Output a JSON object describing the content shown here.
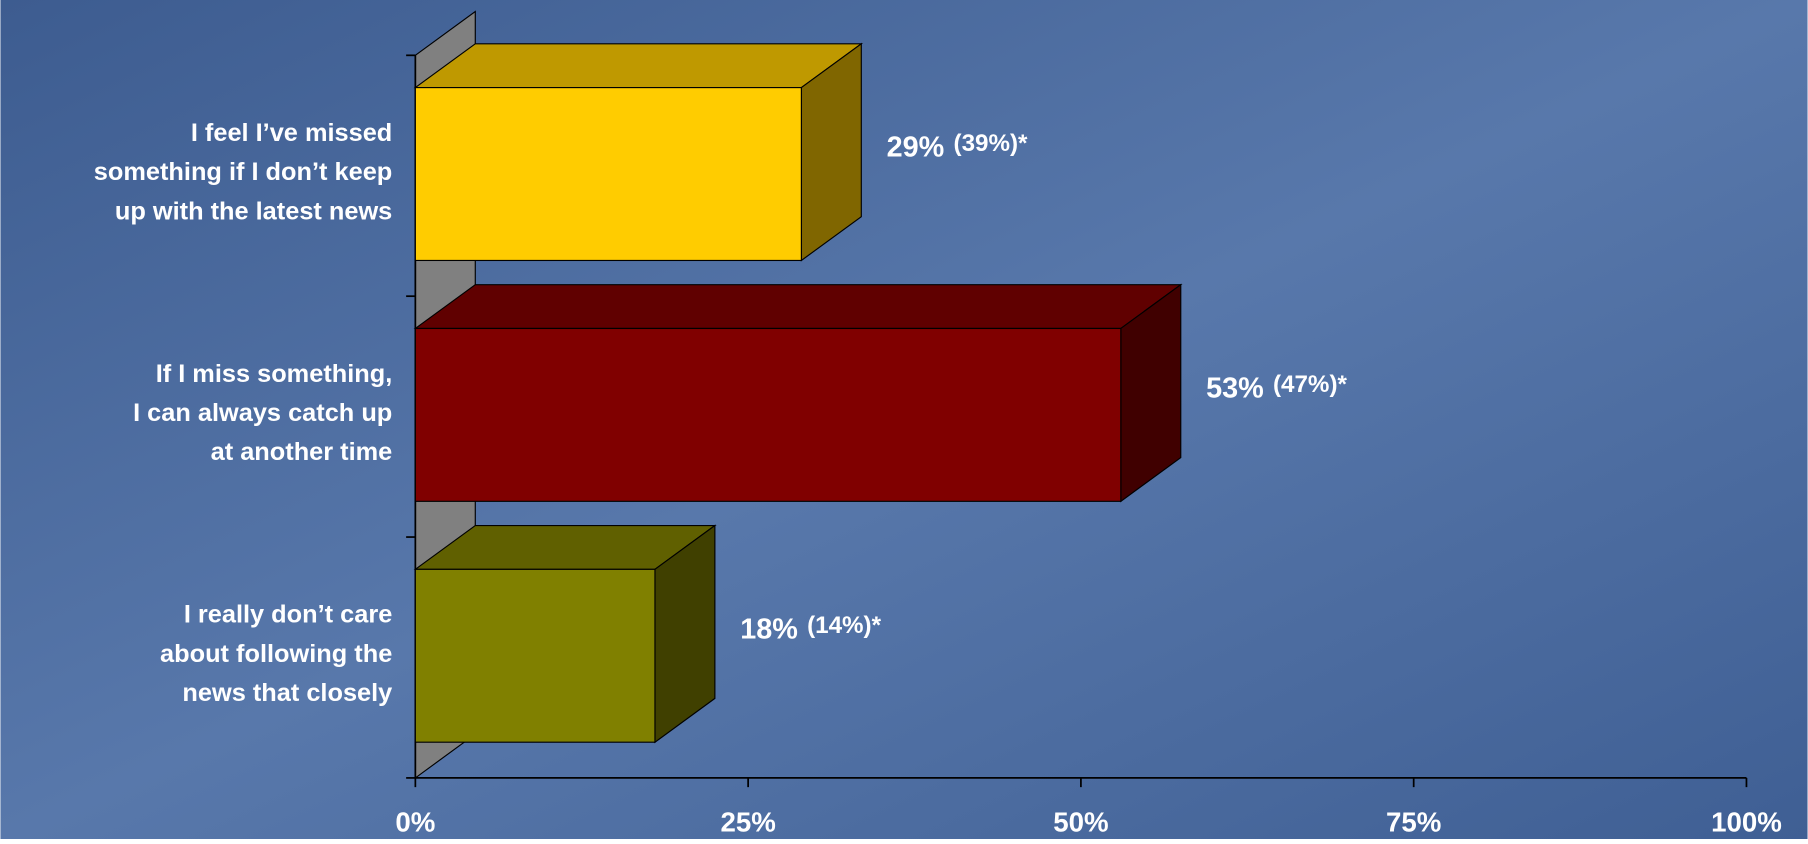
{
  "chart_data": {
    "type": "bar3d_horizontal",
    "categories": [
      [
        "I feel I’ve missed",
        "something if I don’t keep",
        "up with the latest news"
      ],
      [
        "If I miss something,",
        "I can always catch up",
        "at another time"
      ],
      [
        "I really don’t care",
        "about following the",
        "news that closely"
      ]
    ],
    "values": [
      29,
      53,
      18
    ],
    "value_labels": [
      "29%",
      "53%",
      "18%"
    ],
    "comparison_labels": [
      "(39%)*",
      "(47%)*",
      "(14%)*"
    ],
    "colors": [
      "#ffcc00",
      "#800000",
      "#808000"
    ],
    "xlim": [
      0,
      100
    ],
    "xticks": [
      {
        "value": 0,
        "label": "0%"
      },
      {
        "value": 25,
        "label": "25%"
      },
      {
        "value": 50,
        "label": "50%"
      },
      {
        "value": 75,
        "label": "75%"
      },
      {
        "value": 100,
        "label": "100%"
      }
    ],
    "grid": false
  }
}
